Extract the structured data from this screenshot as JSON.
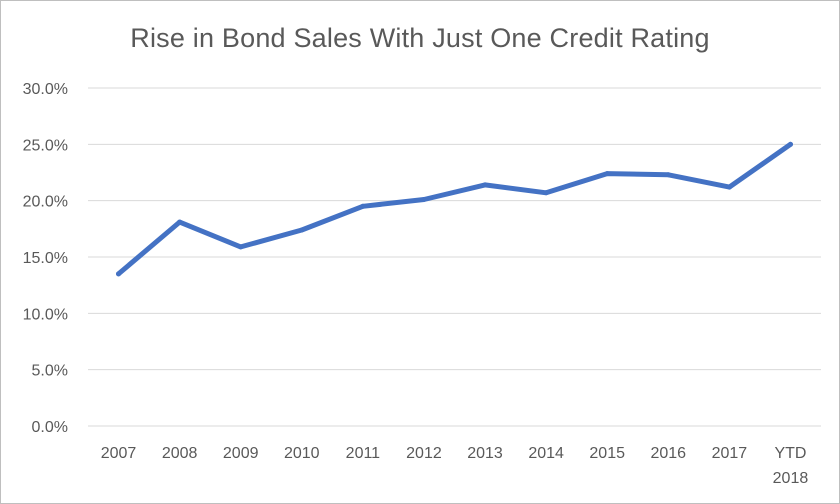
{
  "chart_data": {
    "type": "line",
    "title": "Rise in Bond Sales With Just One Credit Rating",
    "xlabel": "",
    "ylabel": "",
    "categories": [
      "2007",
      "2008",
      "2009",
      "2010",
      "2011",
      "2012",
      "2013",
      "2014",
      "2015",
      "2016",
      "2017",
      "YTD 2018"
    ],
    "y_ticks": [
      "0.0%",
      "5.0%",
      "10.0%",
      "15.0%",
      "20.0%",
      "25.0%",
      "30.0%"
    ],
    "ylim": [
      0,
      30
    ],
    "grid": true,
    "legend": "none",
    "series": [
      {
        "color": "#4472c4",
        "values": [
          13.5,
          18.1,
          15.9,
          17.4,
          19.5,
          20.1,
          21.4,
          20.7,
          22.4,
          22.3,
          21.2,
          25.0
        ]
      }
    ]
  }
}
